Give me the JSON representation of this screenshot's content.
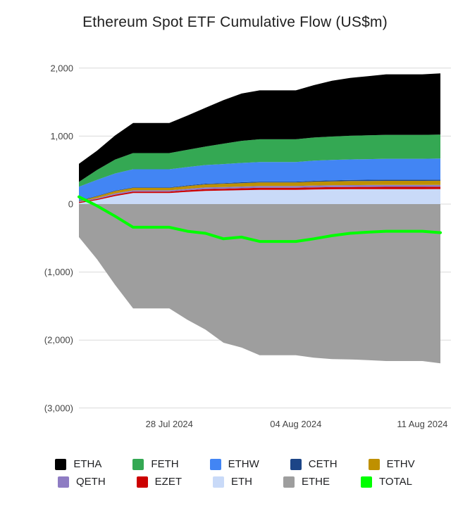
{
  "title": "Ethereum Spot ETF Cumulative Flow (US$m)",
  "chart_data": {
    "type": "area",
    "stacked": true,
    "title": "Ethereum Spot ETF Cumulative Flow (US$m)",
    "xlabel": "",
    "ylabel": "",
    "ylim": [
      -3000,
      2000
    ],
    "grid": true,
    "legend_position": "bottom",
    "x": [
      "23 Jul 2024",
      "24 Jul 2024",
      "25 Jul 2024",
      "26 Jul 2024",
      "27 Jul 2024",
      "28 Jul 2024",
      "29 Jul 2024",
      "30 Jul 2024",
      "31 Jul 2024",
      "01 Aug 2024",
      "02 Aug 2024",
      "03 Aug 2024",
      "04 Aug 2024",
      "05 Aug 2024",
      "06 Aug 2024",
      "07 Aug 2024",
      "08 Aug 2024",
      "09 Aug 2024",
      "10 Aug 2024",
      "11 Aug 2024",
      "12 Aug 2024"
    ],
    "x_ticks": [
      {
        "label": "28 Jul 2024",
        "x_index": 5
      },
      {
        "label": "04 Aug 2024",
        "x_index": 12
      },
      {
        "label": "11 Aug 2024",
        "x_index": 19
      }
    ],
    "y_ticks": [
      2000,
      1000,
      0,
      -1000,
      -2000,
      -3000
    ],
    "y_tick_labels": [
      "2,000",
      "1,000",
      "0",
      "(1,000)",
      "(2,000)",
      "(3,000)"
    ],
    "stack_order": [
      "ETH",
      "EZET",
      "QETH",
      "ETHV",
      "CETH",
      "ETHW",
      "FETH",
      "ETHA",
      "ETHE"
    ],
    "line_series": "TOTAL",
    "legend_rows": [
      [
        "ETHA",
        "FETH",
        "ETHW",
        "CETH",
        "ETHV"
      ],
      [
        "QETH",
        "EZET",
        "ETH",
        "ETHE",
        "TOTAL"
      ]
    ],
    "series": [
      {
        "name": "ETHA",
        "type": "area",
        "color": "#000000",
        "values": [
          266,
          284,
          355,
          442,
          442,
          442,
          504,
          570,
          640,
          695,
          720,
          720,
          720,
          770,
          820,
          850,
          870,
          890,
          890,
          890,
          900
        ]
      },
      {
        "name": "FETH",
        "type": "area",
        "color": "#34a853",
        "values": [
          71,
          146,
          204,
          239,
          239,
          239,
          253,
          272,
          300,
          325,
          335,
          335,
          335,
          340,
          345,
          348,
          350,
          352,
          352,
          352,
          353
        ]
      },
      {
        "name": "ETHW",
        "type": "area",
        "color": "#4285f4",
        "values": [
          204,
          234,
          250,
          266,
          266,
          266,
          270,
          275,
          280,
          285,
          288,
          288,
          288,
          297,
          300,
          303,
          305,
          308,
          308,
          308,
          310
        ]
      },
      {
        "name": "CETH",
        "type": "area",
        "color": "#1c4587",
        "values": [
          8,
          8,
          8,
          8,
          8,
          8,
          10,
          10,
          10,
          12,
          12,
          12,
          12,
          14,
          15,
          16,
          17,
          17,
          17,
          17,
          17
        ]
      },
      {
        "name": "ETHV",
        "type": "area",
        "color": "#bf9000",
        "values": [
          5,
          25,
          35,
          35,
          35,
          35,
          40,
          45,
          48,
          50,
          52,
          52,
          52,
          55,
          57,
          58,
          59,
          60,
          60,
          60,
          60
        ]
      },
      {
        "name": "QETH",
        "type": "area",
        "color": "#8e7cc3",
        "values": [
          10,
          13,
          19,
          19,
          19,
          19,
          22,
          25,
          25,
          26,
          26,
          26,
          26,
          27,
          27,
          28,
          28,
          28,
          28,
          28,
          28
        ]
      },
      {
        "name": "EZET",
        "type": "area",
        "color": "#cc0000",
        "values": [
          13,
          16,
          20,
          21,
          21,
          21,
          23,
          25,
          26,
          28,
          30,
          30,
          30,
          31,
          32,
          32,
          33,
          33,
          33,
          33,
          33
        ]
      },
      {
        "name": "ETH",
        "type": "area",
        "color": "#c9daf8",
        "values": [
          15,
          60,
          118,
          163,
          163,
          163,
          180,
          195,
          200,
          205,
          210,
          210,
          210,
          215,
          218,
          220,
          220,
          221,
          221,
          221,
          222
        ]
      },
      {
        "name": "ETHE",
        "type": "area",
        "color": "#9e9e9e",
        "values": [
          -485,
          -812,
          -1187,
          -1534,
          -1534,
          -1534,
          -1702,
          -1847,
          -2039,
          -2111,
          -2223,
          -2223,
          -2223,
          -2259,
          -2279,
          -2285,
          -2295,
          -2309,
          -2309,
          -2309,
          -2343
        ]
      },
      {
        "name": "TOTAL",
        "type": "line",
        "color": "#00ff00",
        "values": [
          107,
          -26,
          -178,
          -341,
          -341,
          -341,
          -400,
          -430,
          -510,
          -485,
          -550,
          -550,
          -550,
          -510,
          -465,
          -430,
          -413,
          -400,
          -400,
          -400,
          -420
        ]
      }
    ],
    "colors": {
      "gridline": "#d9d9d9",
      "axis_text": "#444444",
      "title_text": "#1f1f1f",
      "total_line": "#00ff00"
    }
  }
}
